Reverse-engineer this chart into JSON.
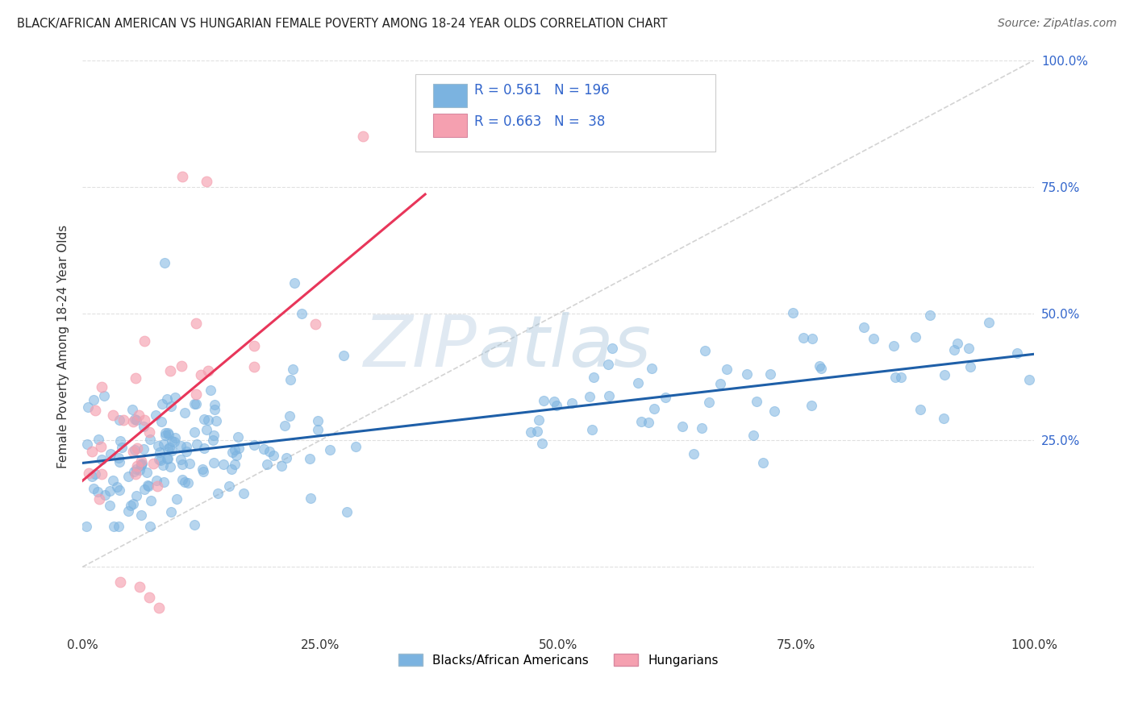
{
  "title": "BLACK/AFRICAN AMERICAN VS HUNGARIAN FEMALE POVERTY AMONG 18-24 YEAR OLDS CORRELATION CHART",
  "source": "Source: ZipAtlas.com",
  "ylabel": "Female Poverty Among 18-24 Year Olds",
  "blue_R": 0.561,
  "blue_N": 196,
  "pink_R": 0.663,
  "pink_N": 38,
  "blue_color": "#7BB3E0",
  "pink_color": "#F5A0B0",
  "line_blue": "#1E5FA8",
  "line_pink": "#E8365A",
  "diag_color": "#C8C8C8",
  "watermark_zip": "ZIP",
  "watermark_atlas": "atlas",
  "legend_label_blue": "Blacks/African Americans",
  "legend_label_pink": "Hungarians",
  "background_color": "#FFFFFF",
  "grid_color": "#E0E0E0"
}
